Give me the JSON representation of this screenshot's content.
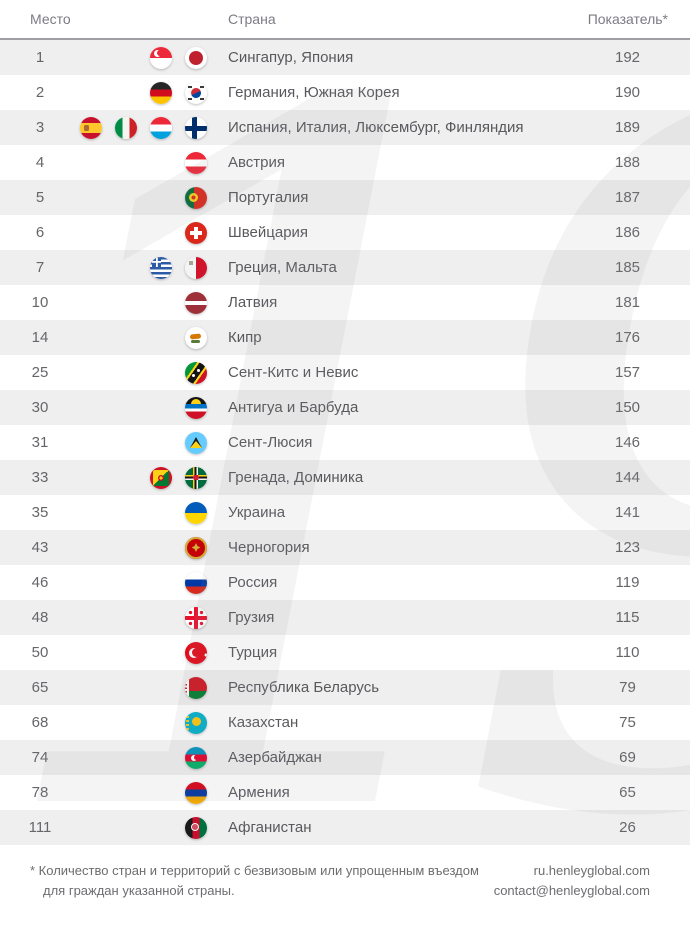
{
  "watermark": "19",
  "header": {
    "rank_label": "Место",
    "country_label": "Страна",
    "score_label": "Показатель*"
  },
  "rows": [
    {
      "rank": "1",
      "countries": "Сингапур, Япония",
      "flags": [
        "singapore",
        "japan"
      ],
      "score": "192"
    },
    {
      "rank": "2",
      "countries": "Германия, Южная Корея",
      "flags": [
        "germany",
        "south-korea"
      ],
      "score": "190"
    },
    {
      "rank": "3",
      "countries": "Испания, Италия, Люксембург, Финляндия",
      "flags": [
        "spain",
        "italy",
        "luxembourg",
        "finland"
      ],
      "score": "189"
    },
    {
      "rank": "4",
      "countries": "Австрия",
      "flags": [
        "austria"
      ],
      "score": "188"
    },
    {
      "rank": "5",
      "countries": "Португалия",
      "flags": [
        "portugal"
      ],
      "score": "187"
    },
    {
      "rank": "6",
      "countries": "Швейцария",
      "flags": [
        "switzerland"
      ],
      "score": "186"
    },
    {
      "rank": "7",
      "countries": "Греция, Мальта",
      "flags": [
        "greece",
        "malta"
      ],
      "score": "185"
    },
    {
      "rank": "10",
      "countries": "Латвия",
      "flags": [
        "latvia"
      ],
      "score": "181"
    },
    {
      "rank": "14",
      "countries": "Кипр",
      "flags": [
        "cyprus"
      ],
      "score": "176"
    },
    {
      "rank": "25",
      "countries": "Сент-Китс и Невис",
      "flags": [
        "st-kitts-nevis"
      ],
      "score": "157"
    },
    {
      "rank": "30",
      "countries": "Антигуа и Барбуда",
      "flags": [
        "antigua-barbuda"
      ],
      "score": "150"
    },
    {
      "rank": "31",
      "countries": "Сент-Люсия",
      "flags": [
        "st-lucia"
      ],
      "score": "146"
    },
    {
      "rank": "33",
      "countries": "Гренада, Доминика",
      "flags": [
        "grenada",
        "dominica"
      ],
      "score": "144"
    },
    {
      "rank": "35",
      "countries": "Украина",
      "flags": [
        "ukraine"
      ],
      "score": "141"
    },
    {
      "rank": "43",
      "countries": "Черногория",
      "flags": [
        "montenegro"
      ],
      "score": "123"
    },
    {
      "rank": "46",
      "countries": "Россия",
      "flags": [
        "russia"
      ],
      "score": "119"
    },
    {
      "rank": "48",
      "countries": "Грузия",
      "flags": [
        "georgia"
      ],
      "score": "115"
    },
    {
      "rank": "50",
      "countries": "Турция",
      "flags": [
        "turkey"
      ],
      "score": "110"
    },
    {
      "rank": "65",
      "countries": "Республика Беларусь",
      "flags": [
        "belarus"
      ],
      "score": "79"
    },
    {
      "rank": "68",
      "countries": "Казахстан",
      "flags": [
        "kazakhstan"
      ],
      "score": "75"
    },
    {
      "rank": "74",
      "countries": "Азербайджан",
      "flags": [
        "azerbaijan"
      ],
      "score": "69"
    },
    {
      "rank": "78",
      "countries": "Армения",
      "flags": [
        "armenia"
      ],
      "score": "65"
    },
    {
      "rank": "111",
      "countries": "Афганистан",
      "flags": [
        "afghanistan"
      ],
      "score": "26"
    }
  ],
  "footer": {
    "note_line1": "* Количество стран и территорий с безвизовым или упрощенным въездом",
    "note_line2": "для граждан указанной страны.",
    "site": "ru.henleyglobal.com",
    "email": "contact@henleyglobal.com"
  },
  "colors": {
    "row_stripe": "#efefef",
    "header_rule": "#9e9ea3",
    "text_gray": "#59595d"
  },
  "chart_data": {
    "type": "table",
    "columns": [
      "Место",
      "Страна",
      "Показатель*"
    ],
    "rows": [
      [
        1,
        "Сингапур, Япония",
        192
      ],
      [
        2,
        "Германия, Южная Корея",
        190
      ],
      [
        3,
        "Испания, Италия, Люксембург, Финляндия",
        189
      ],
      [
        4,
        "Австрия",
        188
      ],
      [
        5,
        "Португалия",
        187
      ],
      [
        6,
        "Швейцария",
        186
      ],
      [
        7,
        "Греция, Мальта",
        185
      ],
      [
        10,
        "Латвия",
        181
      ],
      [
        14,
        "Кипр",
        176
      ],
      [
        25,
        "Сент-Китс и Невис",
        157
      ],
      [
        30,
        "Антигуа и Барбуда",
        150
      ],
      [
        31,
        "Сент-Люсия",
        146
      ],
      [
        33,
        "Гренада, Доминика",
        144
      ],
      [
        35,
        "Украина",
        141
      ],
      [
        43,
        "Черногория",
        123
      ],
      [
        46,
        "Россия",
        119
      ],
      [
        48,
        "Грузия",
        115
      ],
      [
        50,
        "Турция",
        110
      ],
      [
        65,
        "Республика Беларусь",
        79
      ],
      [
        68,
        "Казахстан",
        75
      ],
      [
        74,
        "Азербайджан",
        69
      ],
      [
        78,
        "Армения",
        65
      ],
      [
        111,
        "Афганистан",
        26
      ]
    ],
    "footnote": "* Количество стран и территорий с безвизовым или упрощенным въездом для граждан указанной страны."
  }
}
